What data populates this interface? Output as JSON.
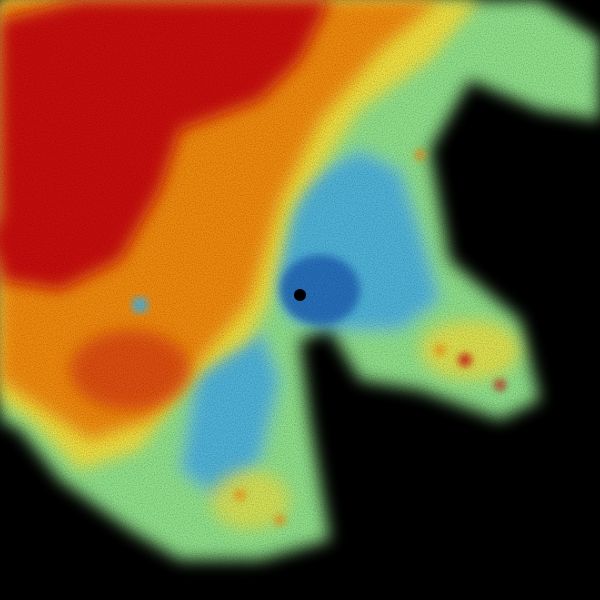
{
  "image": {
    "kind": "weather radar reflectivity sweep",
    "colors": {
      "background": "#000000",
      "low": "#1a5fb4",
      "low_mid": "#4fb3d9",
      "mid": "#8fe08a",
      "mid_high": "#f0e040",
      "high": "#f08a10",
      "very_high": "#c80a0a"
    }
  }
}
